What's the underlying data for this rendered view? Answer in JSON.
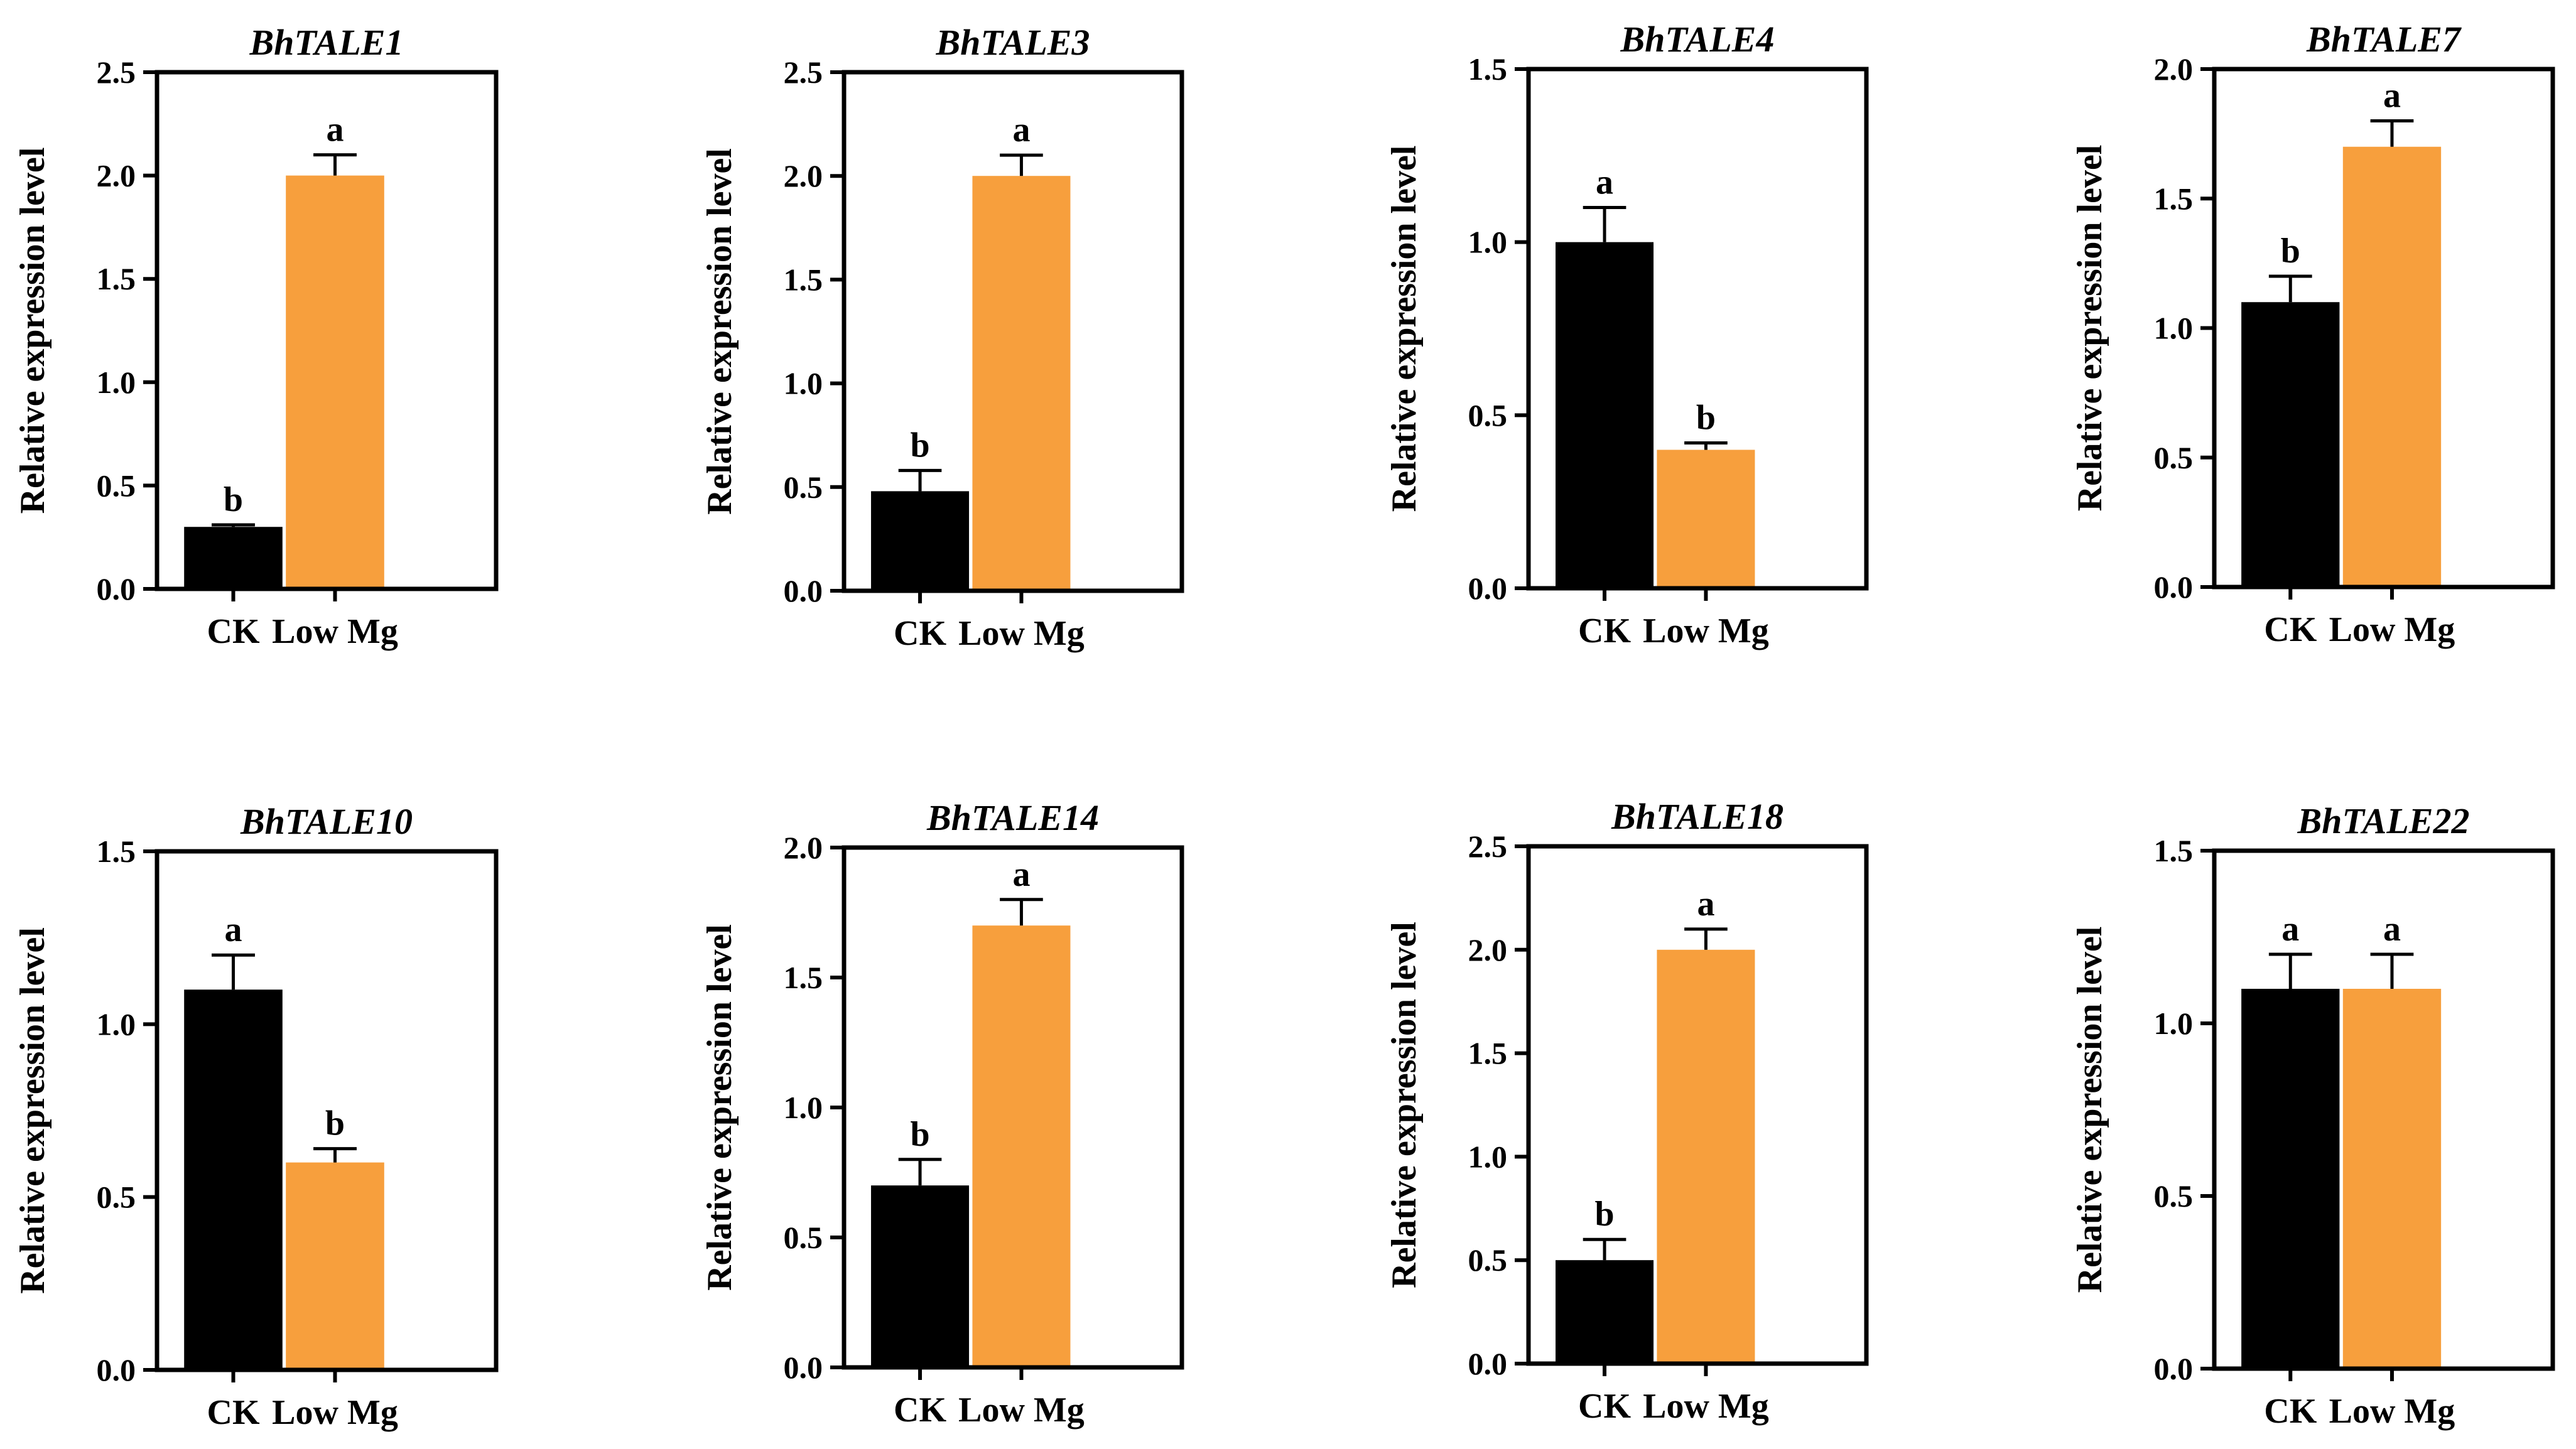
{
  "figure_title": "",
  "colors": {
    "CK": "#000000",
    "Low Mg": "#F79F3D",
    "axis": "#000000"
  },
  "chart_data": [
    {
      "type": "bar",
      "title": "BhTALE1",
      "ylabel": "Relative expression level",
      "xlabel": "",
      "categories": [
        "CK",
        "Low Mg"
      ],
      "values": [
        0.3,
        2.0
      ],
      "errors": [
        0.01,
        0.1
      ],
      "significance": [
        "b",
        "a"
      ],
      "ylim": [
        0,
        2.5
      ],
      "yticks": [
        0,
        0.5,
        1.0,
        1.5,
        2.0,
        2.5
      ],
      "ytick_labels": [
        "0.0",
        "0.5",
        "1.0",
        "1.5",
        "2.0",
        "2.5"
      ]
    },
    {
      "type": "bar",
      "title": "BhTALE3",
      "ylabel": "Relative expression level",
      "xlabel": "",
      "categories": [
        "CK",
        "Low Mg"
      ],
      "values": [
        0.48,
        2.0
      ],
      "errors": [
        0.1,
        0.1
      ],
      "significance": [
        "b",
        "a"
      ],
      "ylim": [
        0,
        2.5
      ],
      "yticks": [
        0,
        0.5,
        1.0,
        1.5,
        2.0,
        2.5
      ],
      "ytick_labels": [
        "0.0",
        "0.5",
        "1.0",
        "1.5",
        "2.0",
        "2.5"
      ]
    },
    {
      "type": "bar",
      "title": "BhTALE4",
      "ylabel": "Relative expression level",
      "xlabel": "",
      "categories": [
        "CK",
        "Low Mg"
      ],
      "values": [
        1.0,
        0.4
      ],
      "errors": [
        0.1,
        0.02
      ],
      "significance": [
        "a",
        "b"
      ],
      "ylim": [
        0,
        1.5
      ],
      "yticks": [
        0,
        0.5,
        1.0,
        1.5
      ],
      "ytick_labels": [
        "0.0",
        "0.5",
        "1.0",
        "1.5"
      ]
    },
    {
      "type": "bar",
      "title": "BhTALE7",
      "ylabel": "Relative expression level",
      "xlabel": "",
      "categories": [
        "CK",
        "Low Mg"
      ],
      "values": [
        1.1,
        1.7
      ],
      "errors": [
        0.1,
        0.1
      ],
      "significance": [
        "b",
        "a"
      ],
      "ylim": [
        0,
        2.0
      ],
      "yticks": [
        0,
        0.5,
        1.0,
        1.5,
        2.0
      ],
      "ytick_labels": [
        "0.0",
        "0.5",
        "1.0",
        "1.5",
        "2.0"
      ]
    },
    {
      "type": "bar",
      "title": "BhTALE10",
      "ylabel": "Relative expression level",
      "xlabel": "",
      "categories": [
        "CK",
        "Low Mg"
      ],
      "values": [
        1.1,
        0.6
      ],
      "errors": [
        0.1,
        0.04
      ],
      "significance": [
        "a",
        "b"
      ],
      "ylim": [
        0,
        1.5
      ],
      "yticks": [
        0,
        0.5,
        1.0,
        1.5
      ],
      "ytick_labels": [
        "0.0",
        "0.5",
        "1.0",
        "1.5"
      ]
    },
    {
      "type": "bar",
      "title": "BhTALE14",
      "ylabel": "Relative expression level",
      "xlabel": "",
      "categories": [
        "CK",
        "Low Mg"
      ],
      "values": [
        0.7,
        1.7
      ],
      "errors": [
        0.1,
        0.1
      ],
      "significance": [
        "b",
        "a"
      ],
      "ylim": [
        0,
        2.0
      ],
      "yticks": [
        0,
        0.5,
        1.0,
        1.5,
        2.0
      ],
      "ytick_labels": [
        "0.0",
        "0.5",
        "1.0",
        "1.5",
        "2.0"
      ]
    },
    {
      "type": "bar",
      "title": "BhTALE18",
      "ylabel": "Relative expression level",
      "xlabel": "",
      "categories": [
        "CK",
        "Low Mg"
      ],
      "values": [
        0.5,
        2.0
      ],
      "errors": [
        0.1,
        0.1
      ],
      "significance": [
        "b",
        "a"
      ],
      "ylim": [
        0,
        2.5
      ],
      "yticks": [
        0,
        0.5,
        1.0,
        1.5,
        2.0,
        2.5
      ],
      "ytick_labels": [
        "0.0",
        "0.5",
        "1.0",
        "1.5",
        "2.0",
        "2.5"
      ]
    },
    {
      "type": "bar",
      "title": "BhTALE22",
      "ylabel": "Relative expression level",
      "xlabel": "",
      "categories": [
        "CK",
        "Low Mg"
      ],
      "values": [
        1.1,
        1.1
      ],
      "errors": [
        0.1,
        0.1
      ],
      "significance": [
        "a",
        "a"
      ],
      "ylim": [
        0,
        1.5
      ],
      "yticks": [
        0,
        0.5,
        1.0,
        1.5
      ],
      "ytick_labels": [
        "0.0",
        "0.5",
        "1.0",
        "1.5"
      ]
    }
  ]
}
